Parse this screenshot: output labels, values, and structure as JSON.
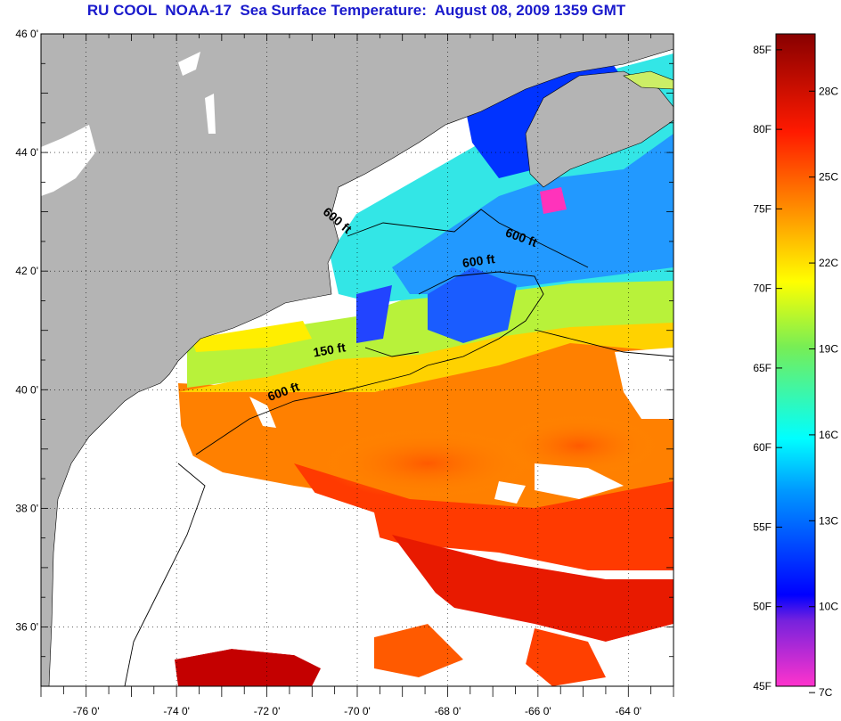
{
  "title": "RU COOL  NOAA-17  Sea Surface Temperature:  August 08, 2009 1359 GMT",
  "map": {
    "lat_labels": [
      "46 0'",
      "44 0'",
      "42 0'",
      "40 0'",
      "38 0'",
      "36 0'"
    ],
    "lon_labels": [
      "-76 0'",
      "-74 0'",
      "-72 0'",
      "-70 0'",
      "-68 0'",
      "-66 0'",
      "-64 0'"
    ],
    "lat_range": [
      35,
      46
    ],
    "lon_range": [
      -77,
      -63
    ],
    "colors": {
      "land": "#b4b4b4",
      "cloud": "#ffffff"
    }
  },
  "isobath_labels": [
    {
      "text": "600 ft",
      "lon": -70.5,
      "lat": 42.8
    },
    {
      "text": "600 ft",
      "lon": -66.4,
      "lat": 42.5
    },
    {
      "text": "600 ft",
      "lon": -67.3,
      "lat": 42.1
    },
    {
      "text": "150 ft",
      "lon": -70.6,
      "lat": 40.6
    },
    {
      "text": "600 ft",
      "lon": -71.6,
      "lat": 39.9
    }
  ],
  "colorbar": {
    "fahrenheit_labels": [
      "85F",
      "80F",
      "75F",
      "70F",
      "65F",
      "60F",
      "55F",
      "50F",
      "45F"
    ],
    "celsius_labels": [
      "28C",
      "25C",
      "22C",
      "19C",
      "16C",
      "13C",
      "10C",
      "7C"
    ],
    "range_f": [
      45,
      86
    ]
  }
}
